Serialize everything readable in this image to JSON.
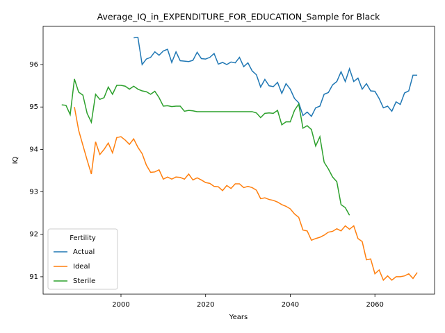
{
  "chart_data": {
    "type": "line",
    "title": "Average_IQ_in_EXPENDITURE_FOR_EDUCATION_Sample for Black",
    "x_label": "Years",
    "y_label": "IQ",
    "legend_title": "Fertility",
    "legend": "lower left",
    "x": [
      1986,
      1987,
      1988,
      1989,
      1990,
      1991,
      1992,
      1993,
      1994,
      1995,
      1996,
      1997,
      1998,
      1999,
      2000,
      2001,
      2002,
      2003,
      2004,
      2005,
      2006,
      2007,
      2008,
      2009,
      2010,
      2011,
      2012,
      2013,
      2014,
      2015,
      2016,
      2017,
      2018,
      2019,
      2020,
      2021,
      2022,
      2023,
      2024,
      2025,
      2026,
      2027,
      2028,
      2029,
      2030,
      2031,
      2032,
      2033,
      2034,
      2035,
      2036,
      2037,
      2038,
      2039,
      2040,
      2041,
      2042,
      2043,
      2044,
      2045,
      2046,
      2047,
      2048,
      2049,
      2050,
      2051,
      2052,
      2053,
      2054,
      2055,
      2056,
      2057,
      2058,
      2059,
      2060,
      2061,
      2062,
      2063,
      2064,
      2065,
      2066,
      2067,
      2068,
      2069,
      2070
    ],
    "series": [
      {
        "name": "Actual",
        "color": "#1f77b4",
        "values": [
          null,
          null,
          null,
          null,
          null,
          null,
          null,
          null,
          null,
          null,
          null,
          null,
          null,
          null,
          null,
          null,
          null,
          96.63,
          96.64,
          96.0,
          96.13,
          96.17,
          96.3,
          96.22,
          96.32,
          96.36,
          96.05,
          96.3,
          96.09,
          96.08,
          96.07,
          96.1,
          96.29,
          96.14,
          96.13,
          96.17,
          96.26,
          96.01,
          96.05,
          96.0,
          96.06,
          96.04,
          96.17,
          95.95,
          96.04,
          95.85,
          95.76,
          95.47,
          95.65,
          95.5,
          95.48,
          95.58,
          95.32,
          95.55,
          95.42,
          95.2,
          95.1,
          94.8,
          94.88,
          94.78,
          94.98,
          95.02,
          95.3,
          95.34,
          95.52,
          95.6,
          95.83,
          95.6,
          95.9,
          95.6,
          95.68,
          95.42,
          95.55,
          95.38,
          95.37,
          95.2,
          94.98,
          95.02,
          94.9,
          95.12,
          95.06,
          95.33,
          95.38,
          95.75,
          95.75
        ]
      },
      {
        "name": "Ideal",
        "color": "#ff7f0e",
        "values": [
          null,
          null,
          null,
          95.0,
          94.45,
          94.1,
          93.75,
          93.42,
          94.18,
          93.88,
          94.0,
          94.15,
          93.92,
          94.28,
          94.3,
          94.22,
          94.12,
          94.25,
          94.05,
          93.9,
          93.63,
          93.46,
          93.47,
          93.52,
          93.3,
          93.35,
          93.3,
          93.35,
          93.34,
          93.3,
          93.42,
          93.28,
          93.33,
          93.28,
          93.22,
          93.2,
          93.13,
          93.12,
          93.03,
          93.15,
          93.08,
          93.19,
          93.19,
          93.1,
          93.13,
          93.1,
          93.04,
          92.84,
          92.86,
          92.82,
          92.8,
          92.76,
          92.7,
          92.66,
          92.6,
          92.48,
          92.4,
          92.1,
          92.08,
          91.86,
          91.9,
          91.93,
          91.98,
          92.05,
          92.07,
          92.13,
          92.08,
          92.2,
          92.12,
          92.2,
          91.9,
          91.83,
          91.4,
          91.42,
          91.07,
          91.16,
          90.92,
          91.02,
          90.92,
          91.0,
          91.0,
          91.02,
          91.07,
          90.96,
          91.1
        ]
      },
      {
        "name": "Sterile",
        "color": "#2ca02c",
        "values": [
          95.05,
          95.04,
          94.82,
          95.66,
          95.35,
          95.28,
          94.85,
          94.64,
          95.3,
          95.18,
          95.22,
          95.47,
          95.3,
          95.51,
          95.51,
          95.49,
          95.42,
          95.49,
          95.42,
          95.38,
          95.36,
          95.3,
          95.37,
          95.22,
          95.02,
          95.03,
          95.01,
          95.02,
          95.02,
          94.9,
          94.92,
          94.91,
          94.89,
          94.89,
          94.89,
          94.89,
          94.89,
          94.89,
          94.89,
          94.89,
          94.89,
          94.89,
          94.89,
          94.89,
          94.89,
          94.89,
          94.86,
          94.75,
          94.85,
          94.86,
          94.85,
          94.92,
          94.58,
          94.65,
          94.65,
          94.92,
          95.07,
          94.5,
          94.56,
          94.47,
          94.08,
          94.3,
          93.7,
          93.54,
          93.35,
          93.24,
          92.7,
          92.63,
          92.45,
          null,
          null,
          null,
          null,
          null,
          null,
          null,
          null,
          null,
          null,
          null,
          null,
          null,
          null,
          null,
          null
        ]
      }
    ],
    "xlim": [
      1981.6,
      2074.1
    ],
    "xticks": [
      2000,
      2020,
      2040,
      2060
    ],
    "ylim": [
      90.59,
      96.9
    ],
    "yticks": [
      91,
      92,
      93,
      94,
      95,
      96
    ]
  }
}
